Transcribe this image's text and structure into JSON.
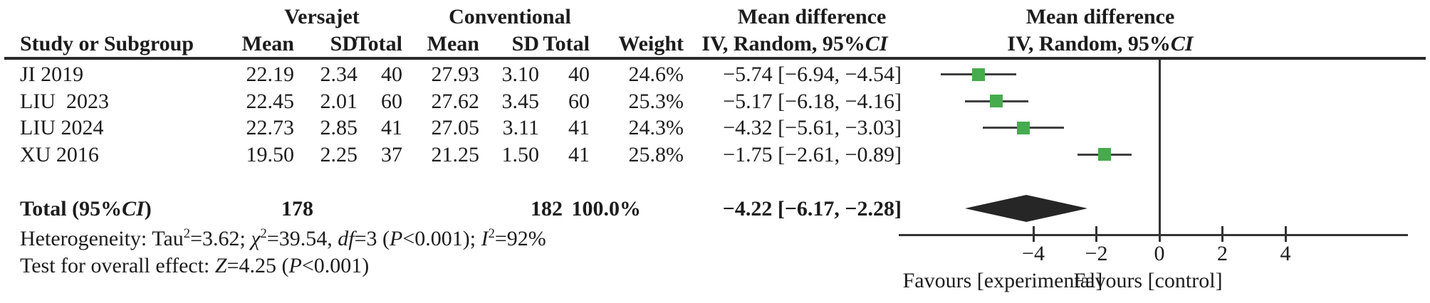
{
  "table": {
    "group1_label": "Versajet",
    "group2_label": "Conventional",
    "md_col_title": "Mean difference",
    "md_plot_title": "Mean difference",
    "col_study": "Study or Subgroup",
    "col_mean1": "Mean",
    "col_sd1": "SD",
    "col_total1": "Total",
    "col_mean2": "Mean",
    "col_sd2": "SD",
    "col_total2": "Total",
    "col_weight": "Weight",
    "method_rich": [
      {
        "t": "IV, Random, 95%"
      },
      {
        "t": "CI",
        "i": true
      }
    ],
    "rows": [
      {
        "study": "JI 2019",
        "mean1": "22.19",
        "sd1": "2.34",
        "total1": "40",
        "mean2": "27.93",
        "sd2": "3.10",
        "total2": "40",
        "weight": "24.6%",
        "md": "−5.74 [−6.94, −4.54]"
      },
      {
        "study": "LIU  2023",
        "mean1": "22.45",
        "sd1": "2.01",
        "total1": "60",
        "mean2": "27.62",
        "sd2": "3.45",
        "total2": "60",
        "weight": "25.3%",
        "md": "−5.17 [−6.18, −4.16]"
      },
      {
        "study": "LIU 2024",
        "mean1": "22.73",
        "sd1": "2.85",
        "total1": "41",
        "mean2": "27.05",
        "sd2": "3.11",
        "total2": "41",
        "weight": "24.3%",
        "md": "−4.32 [−5.61, −3.03]"
      },
      {
        "study": "XU 2016",
        "mean1": "19.50",
        "sd1": "2.25",
        "total1": "37",
        "mean2": "21.25",
        "sd2": "1.50",
        "total2": "41",
        "weight": "25.8%",
        "md": "−1.75 [−2.61, −0.89]"
      }
    ],
    "total": {
      "label_rich": [
        {
          "t": "Total (95%"
        },
        {
          "t": "CI",
          "i": true
        },
        {
          "t": ")"
        }
      ],
      "total1": "178",
      "total2": "182",
      "weight": "100.0%",
      "md": "−4.22 [−6.17, −2.28]"
    },
    "het_rich": [
      {
        "t": "Heterogeneity: Tau"
      },
      {
        "t": "2",
        "sup": true
      },
      {
        "t": "=3.62; "
      },
      {
        "t": "χ",
        "i": true
      },
      {
        "t": "2",
        "sup": true
      },
      {
        "t": "=39.54, "
      },
      {
        "t": "df",
        "i": true
      },
      {
        "t": "=3 ("
      },
      {
        "t": "P",
        "i": true
      },
      {
        "t": "<0.001); "
      },
      {
        "t": "I",
        "i": true
      },
      {
        "t": "2",
        "sup": true
      },
      {
        "t": "=92%"
      }
    ],
    "test_rich": [
      {
        "t": "Test for overall effect: "
      },
      {
        "t": "Z",
        "i": true
      },
      {
        "t": "=4.25 ("
      },
      {
        "t": "P",
        "i": true
      },
      {
        "t": "<0.001)"
      }
    ]
  },
  "chart_data": {
    "type": "forest",
    "effect_measure": "Mean difference",
    "model": "IV, Random, 95%CI",
    "studies": [
      {
        "name": "JI 2019",
        "md": -5.74,
        "ci_low": -6.94,
        "ci_high": -4.54,
        "weight_pct": 24.6
      },
      {
        "name": "LIU 2023",
        "md": -5.17,
        "ci_low": -6.18,
        "ci_high": -4.16,
        "weight_pct": 25.3
      },
      {
        "name": "LIU 2024",
        "md": -4.32,
        "ci_low": -5.61,
        "ci_high": -3.03,
        "weight_pct": 24.3
      },
      {
        "name": "XU 2016",
        "md": -1.75,
        "ci_low": -2.61,
        "ci_high": -0.89,
        "weight_pct": 25.8
      }
    ],
    "total": {
      "md": -4.22,
      "ci_low": -6.17,
      "ci_high": -2.28,
      "weight_pct": 100.0
    },
    "heterogeneity": "Tau2=3.62; chi2=39.54, df=3 (P<0.001); I2=92%",
    "overall_effect": "Z=4.25 (P<0.001)",
    "axis": {
      "min": -8.3,
      "max": 7.9,
      "ticks": [
        {
          "v": -4,
          "label": "−4"
        },
        {
          "v": -2,
          "label": "−2"
        },
        {
          "v": 0,
          "label": "0"
        },
        {
          "v": 2,
          "label": "2"
        },
        {
          "v": 4,
          "label": "4"
        }
      ]
    },
    "favours_left": "Favours [experimental]",
    "favours_right": "Favours [control]",
    "colors": {
      "square": "#46ab4d",
      "diamond": "#262626",
      "line": "#3f3f3f",
      "axis": "#333333"
    }
  }
}
